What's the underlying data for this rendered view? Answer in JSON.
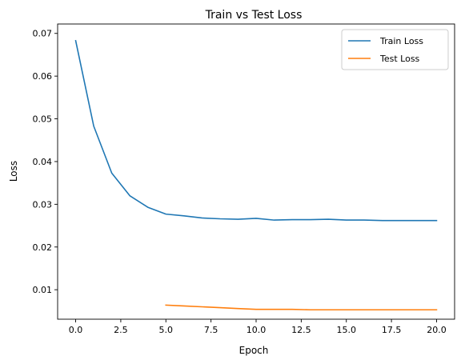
{
  "chart_data": {
    "type": "line",
    "title": "Train vs Test Loss",
    "xlabel": "Epoch",
    "ylabel": "Loss",
    "xlim": [
      -1,
      21
    ],
    "ylim": [
      0.0031,
      0.0722
    ],
    "x_ticks": [
      0.0,
      2.5,
      5.0,
      7.5,
      10.0,
      12.5,
      15.0,
      17.5,
      20.0
    ],
    "x_tick_labels": [
      "0.0",
      "2.5",
      "5.0",
      "7.5",
      "10.0",
      "12.5",
      "15.0",
      "17.5",
      "20.0"
    ],
    "y_ticks": [
      0.01,
      0.02,
      0.03,
      0.04,
      0.05,
      0.06,
      0.07
    ],
    "y_tick_labels": [
      "0.01",
      "0.02",
      "0.03",
      "0.04",
      "0.05",
      "0.06",
      "0.07"
    ],
    "grid": false,
    "legend": "top-right",
    "series": [
      {
        "name": "Train Loss",
        "color": "#1f77b4",
        "x": [
          0,
          1,
          2,
          3,
          4,
          5,
          6,
          7,
          8,
          9,
          10,
          11,
          12,
          13,
          14,
          15,
          16,
          17,
          18,
          19,
          20
        ],
        "y": [
          0.0683,
          0.0483,
          0.0373,
          0.032,
          0.0293,
          0.0277,
          0.0273,
          0.0268,
          0.0266,
          0.0265,
          0.0267,
          0.0263,
          0.0264,
          0.0264,
          0.0265,
          0.0263,
          0.0263,
          0.0262,
          0.0262,
          0.0262,
          0.0262
        ]
      },
      {
        "name": "Test Loss",
        "color": "#ff7f0e",
        "x": [
          5,
          6,
          7,
          8,
          9,
          10,
          11,
          12,
          13,
          14,
          15,
          16,
          17,
          18,
          19,
          20
        ],
        "y": [
          0.0064,
          0.0062,
          0.006,
          0.0058,
          0.0056,
          0.0054,
          0.0054,
          0.0054,
          0.0053,
          0.0053,
          0.0053,
          0.0053,
          0.0053,
          0.0053,
          0.0053,
          0.0053
        ]
      }
    ]
  }
}
